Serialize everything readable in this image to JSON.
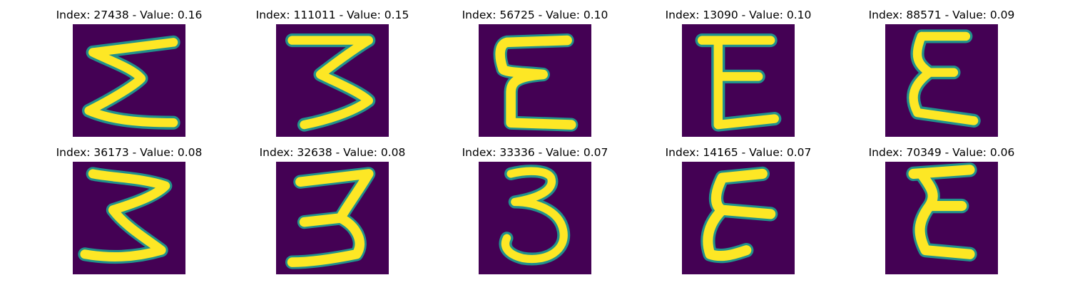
{
  "panels": [
    {
      "title": "Index: 27438 - Value: 0.16",
      "glyph": "Σ"
    },
    {
      "title": "Index: 111011 - Value: 0.15",
      "glyph": "3"
    },
    {
      "title": "Index: 56725 - Value: 0.10",
      "glyph": "E"
    },
    {
      "title": "Index: 13090 - Value: 0.10",
      "glyph": "E"
    },
    {
      "title": "Index: 88571 - Value: 0.09",
      "glyph": "E"
    },
    {
      "title": "Index: 36173 - Value: 0.08",
      "glyph": "3"
    },
    {
      "title": "Index: 32638 - Value: 0.08",
      "glyph": "3"
    },
    {
      "title": "Index: 33336 - Value: 0.07",
      "glyph": "3"
    },
    {
      "title": "Index: 14165 - Value: 0.07",
      "glyph": "E"
    },
    {
      "title": "Index: 70349 - Value: 0.06",
      "glyph": "E"
    }
  ],
  "colors": {
    "background": "#440154",
    "stroke": "#fde725",
    "edge": "#21918c"
  }
}
